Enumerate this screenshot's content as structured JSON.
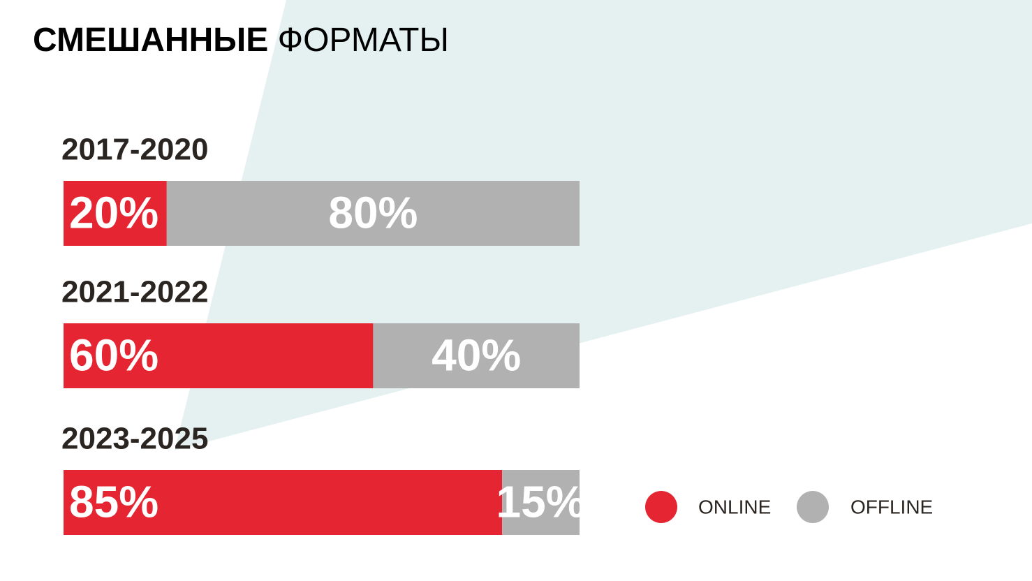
{
  "chart_data": {
    "type": "stacked-bar",
    "orientation": "horizontal",
    "title": "СМЕШАННЫЕ ФОРМАТЫ",
    "categories": [
      "2017-2020",
      "2021-2022",
      "2023-2025"
    ],
    "series": [
      {
        "name": "ONLINE",
        "color": "#e52532",
        "values": [
          20,
          60,
          85
        ],
        "value_labels": [
          "20%",
          "60%",
          "85%"
        ]
      },
      {
        "name": "OFFLINE",
        "color": "#b1b1b1",
        "values": [
          80,
          40,
          15
        ],
        "value_labels": [
          "80%",
          "40%",
          "15%"
        ]
      }
    ],
    "xlim": [
      0,
      100
    ],
    "legend": "bottom-right"
  }
}
